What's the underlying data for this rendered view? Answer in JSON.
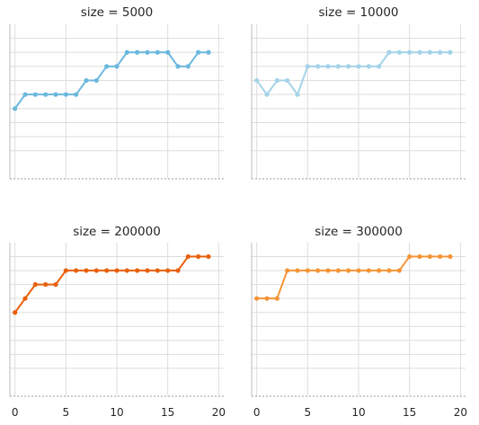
{
  "chart_data": [
    {
      "type": "line",
      "title": "size = 5000",
      "color": "#6bb8dd",
      "x": [
        0,
        1,
        2,
        3,
        4,
        5,
        6,
        7,
        8,
        9,
        10,
        11,
        12,
        13,
        14,
        15,
        16,
        17,
        18,
        19
      ],
      "values": [
        3,
        4,
        4,
        4,
        4,
        4,
        4,
        5,
        5,
        6,
        6,
        7,
        7,
        7,
        7,
        7,
        6,
        6,
        7,
        7
      ],
      "xlim": [
        -0.5,
        20.5
      ],
      "ylim": [
        -2,
        9
      ],
      "xticks": [],
      "grid": true
    },
    {
      "type": "line",
      "title": "size = 10000",
      "color": "#a3d3e8",
      "x": [
        0,
        1,
        2,
        3,
        4,
        5,
        6,
        7,
        8,
        9,
        10,
        11,
        12,
        13,
        14,
        15,
        16,
        17,
        18,
        19
      ],
      "values": [
        5,
        4,
        5,
        5,
        4,
        6,
        6,
        6,
        6,
        6,
        6,
        6,
        6,
        7,
        7,
        7,
        7,
        7,
        7,
        7
      ],
      "xlim": [
        -0.5,
        20.5
      ],
      "ylim": [
        -2,
        9
      ],
      "xticks": [],
      "grid": true
    },
    {
      "type": "line",
      "title": "size = 200000",
      "color": "#e8600a",
      "x": [
        0,
        1,
        2,
        3,
        4,
        5,
        6,
        7,
        8,
        9,
        10,
        11,
        12,
        13,
        14,
        15,
        16,
        17,
        18,
        19
      ],
      "values": [
        4,
        5,
        6,
        6,
        6,
        7,
        7,
        7,
        7,
        7,
        7,
        7,
        7,
        7,
        7,
        7,
        7,
        8,
        8,
        8
      ],
      "xlim": [
        -0.5,
        20.5
      ],
      "ylim": [
        -2,
        9
      ],
      "xticks": [
        0,
        5,
        10,
        15,
        20
      ],
      "grid": true
    },
    {
      "type": "line",
      "title": "size = 300000",
      "color": "#f59437",
      "x": [
        0,
        1,
        2,
        3,
        4,
        5,
        6,
        7,
        8,
        9,
        10,
        11,
        12,
        13,
        14,
        15,
        16,
        17,
        18,
        19
      ],
      "values": [
        5,
        5,
        5,
        7,
        7,
        7,
        7,
        7,
        7,
        7,
        7,
        7,
        7,
        7,
        7,
        8,
        8,
        8,
        8,
        8
      ],
      "xlim": [
        -0.5,
        20.5
      ],
      "ylim": [
        -2,
        9
      ],
      "xticks": [
        0,
        5,
        10,
        15,
        20
      ],
      "grid": true
    }
  ]
}
